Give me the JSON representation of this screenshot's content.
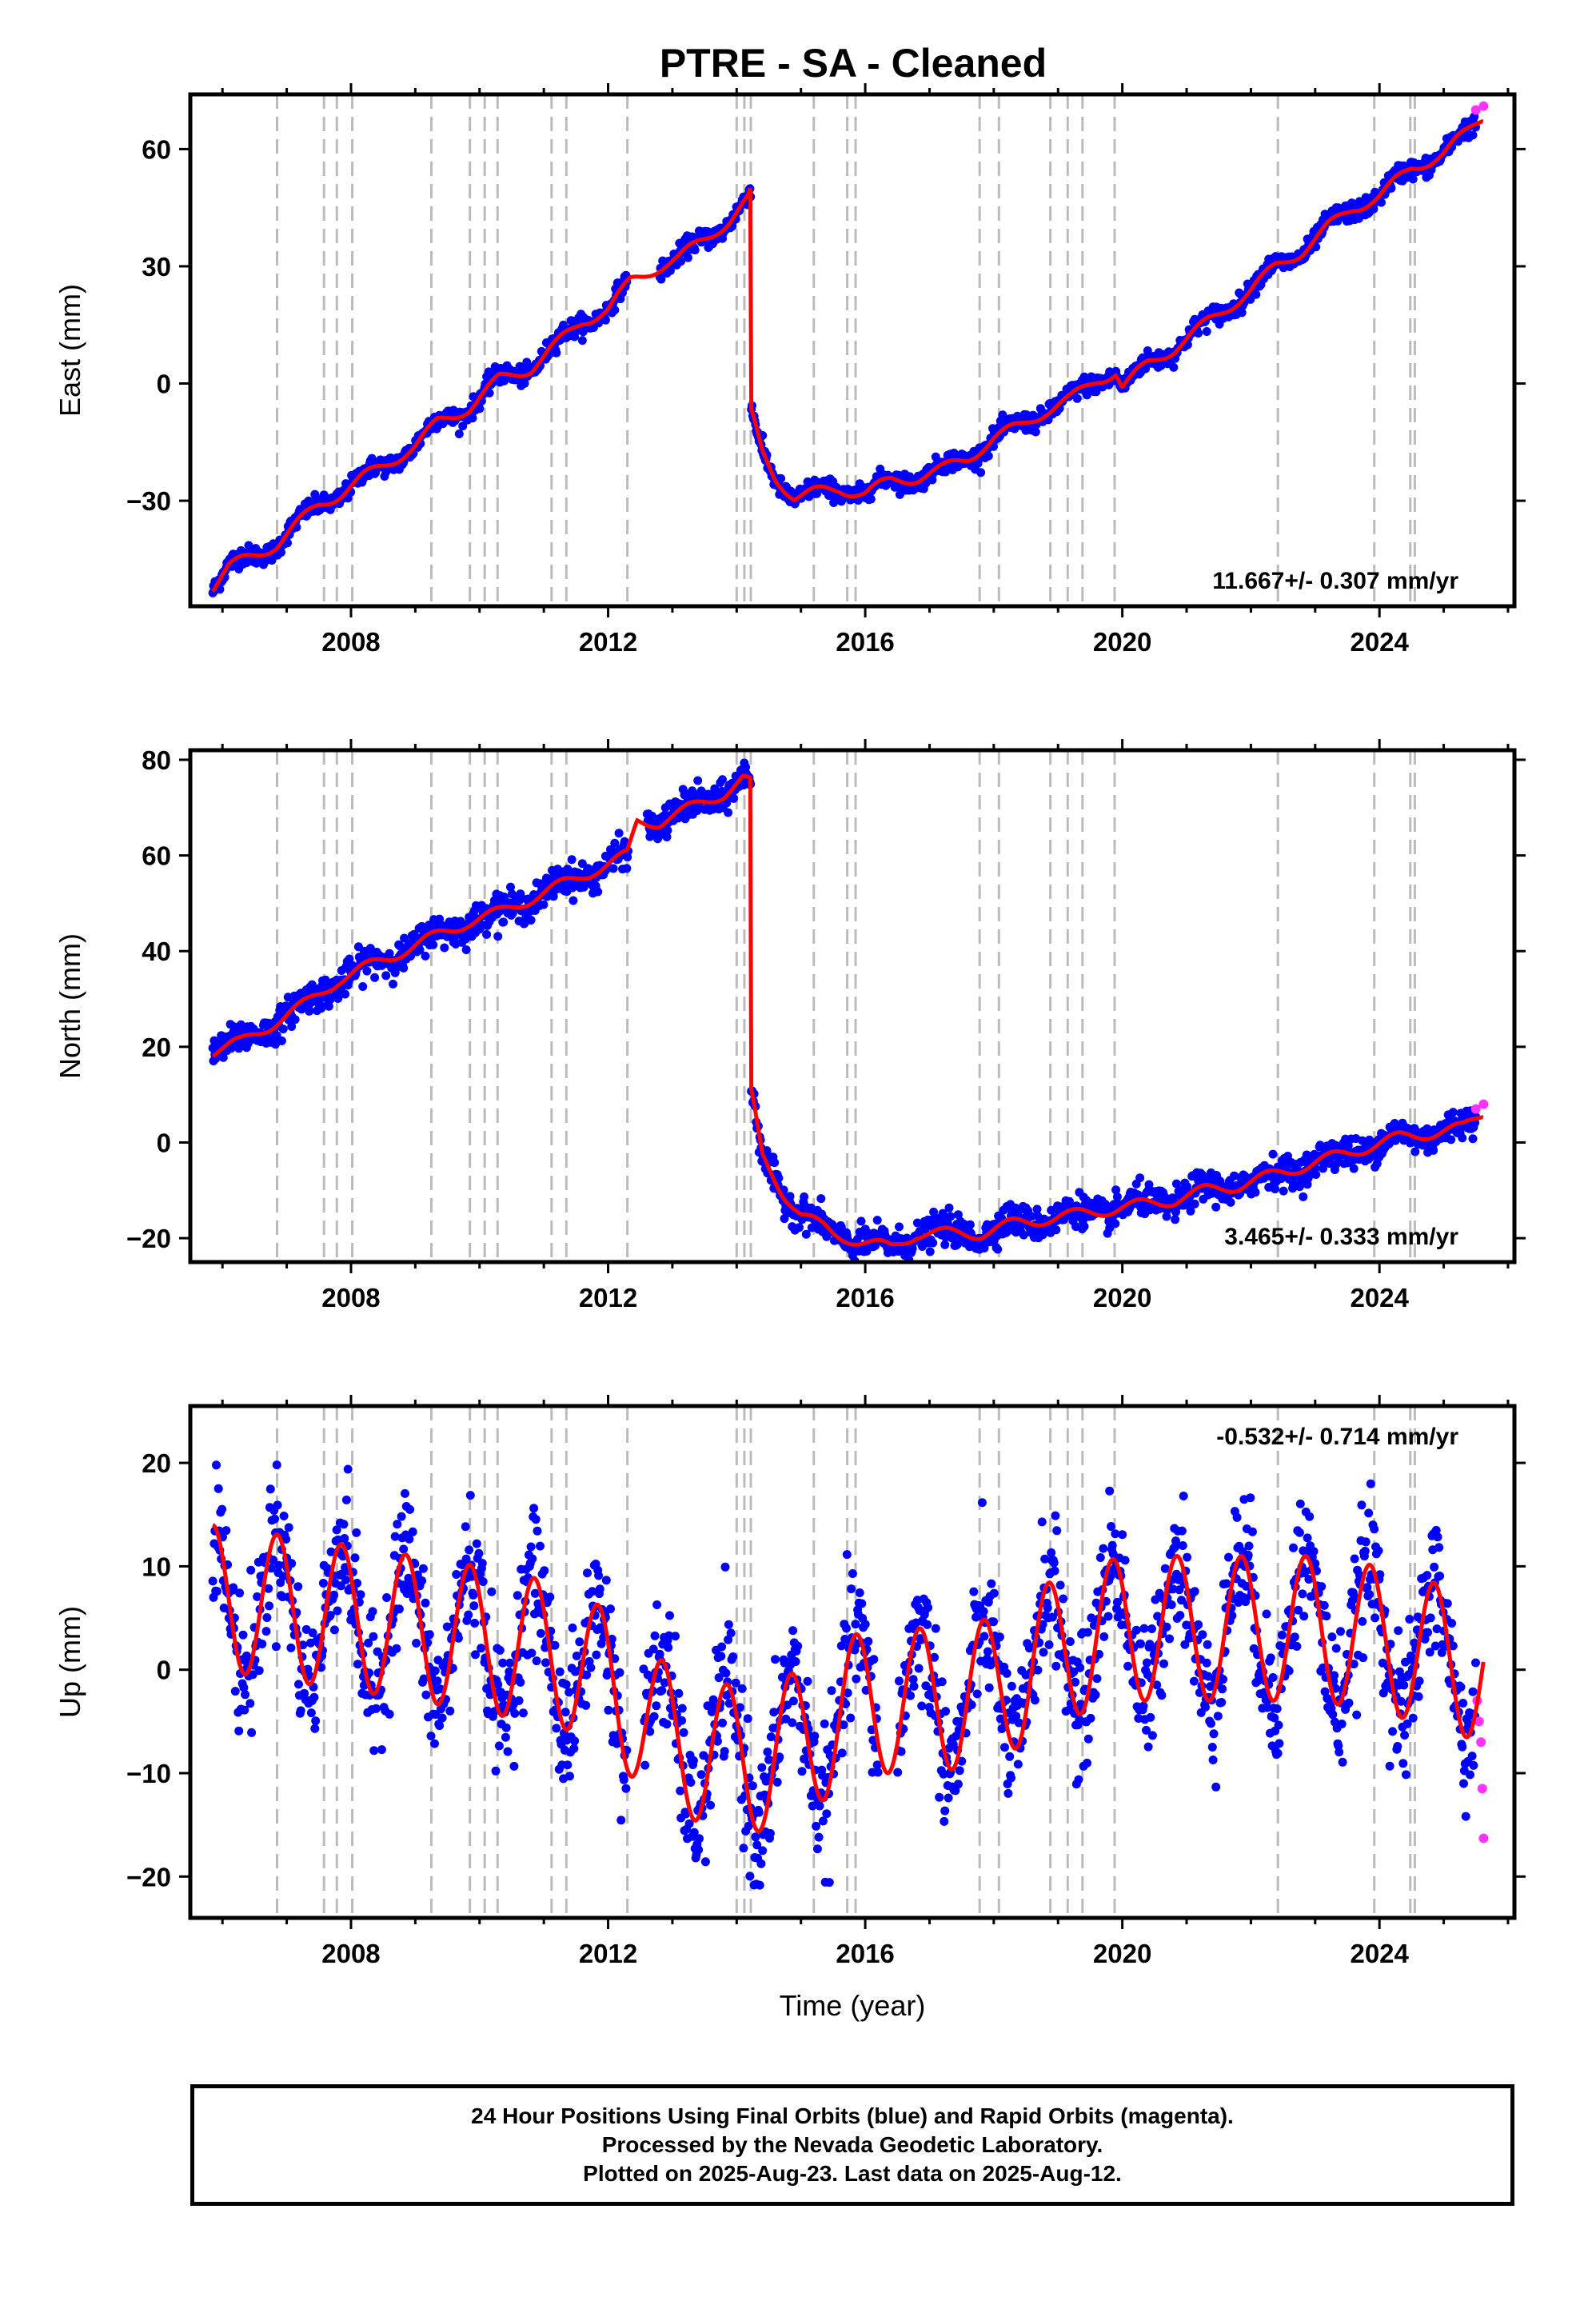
{
  "colors": {
    "final_orbits": "#0000ff",
    "rapid_orbits": "#ff33ff",
    "model": "#ff0000",
    "event_lines": "#bbbbbb",
    "frame": "#000000"
  },
  "caption": {
    "line1": "24 Hour Positions Using Final Orbits (blue) and Rapid Orbits (magenta).",
    "line2": "Processed by the Nevada Geodetic Laboratory.",
    "line3": "Plotted on 2025-Aug-23. Last data on 2025-Aug-12."
  },
  "chart_data": [
    {
      "type": "scatter",
      "title": "PTRE  - SA - Cleaned",
      "xlabel": "",
      "ylabel": "East (mm)",
      "xlim": [
        2005.5,
        2026.1
      ],
      "ylim": [
        -57,
        74
      ],
      "xticks": [
        2008,
        2012,
        2016,
        2020,
        2024
      ],
      "yticks": [
        -30,
        0,
        30,
        60
      ],
      "rate": "11.667+/- 0.307 mm/yr",
      "rate_position": "bottom-right",
      "event_lines": [
        2006.85,
        2007.58,
        2007.78,
        2008.02,
        2009.25,
        2009.85,
        2010.08,
        2010.28,
        2011.12,
        2011.35,
        2012.3,
        2014.0,
        2014.12,
        2014.22,
        2015.2,
        2015.72,
        2015.85,
        2017.78,
        2018.08,
        2018.88,
        2019.15,
        2019.38,
        2019.88,
        2022.42,
        2023.92,
        2024.48,
        2024.55
      ],
      "anchors": [
        [
          2005.85,
          -52
        ],
        [
          2006.1,
          -47
        ],
        [
          2006.5,
          -44
        ],
        [
          2006.85,
          -41
        ],
        [
          2007.1,
          -37
        ],
        [
          2007.5,
          -31
        ],
        [
          2007.85,
          -28
        ],
        [
          2008.2,
          -24
        ],
        [
          2008.6,
          -20
        ],
        [
          2009.0,
          -16
        ],
        [
          2009.35,
          -10
        ],
        [
          2009.85,
          -6
        ],
        [
          2010.3,
          1
        ],
        [
          2010.8,
          4
        ],
        [
          2011.2,
          10
        ],
        [
          2011.6,
          16
        ],
        [
          2012.0,
          19
        ],
        [
          2012.35,
          26
        ],
        [
          2012.8,
          30
        ],
        [
          2013.1,
          32
        ],
        [
          2013.5,
          37
        ],
        [
          2013.9,
          42
        ],
        [
          2014.18,
          47
        ],
        [
          2014.22,
          49
        ]
      ],
      "anchors_post": [
        [
          2014.23,
          -8
        ],
        [
          2014.4,
          -18
        ],
        [
          2014.6,
          -24
        ],
        [
          2014.9,
          -29
        ],
        [
          2015.2,
          -28
        ],
        [
          2015.6,
          -27
        ],
        [
          2016.0,
          -28
        ],
        [
          2016.4,
          -25
        ],
        [
          2016.8,
          -24
        ],
        [
          2017.2,
          -22
        ],
        [
          2017.6,
          -19
        ],
        [
          2018.0,
          -14
        ],
        [
          2018.4,
          -11
        ],
        [
          2018.8,
          -7
        ],
        [
          2019.2,
          -4
        ],
        [
          2019.6,
          1
        ],
        [
          2019.9,
          3
        ],
        [
          2020.0,
          -1
        ],
        [
          2020.4,
          5
        ],
        [
          2020.8,
          9
        ],
        [
          2021.2,
          14
        ],
        [
          2021.6,
          19
        ],
        [
          2022.0,
          24
        ],
        [
          2022.4,
          30
        ],
        [
          2022.8,
          34
        ],
        [
          2023.2,
          40
        ],
        [
          2023.6,
          45
        ],
        [
          2024.0,
          48
        ],
        [
          2024.5,
          55
        ],
        [
          2025.0,
          59
        ],
        [
          2025.35,
          64
        ],
        [
          2025.6,
          68
        ]
      ],
      "noise": 1.2,
      "seasonal_amp": 1.5,
      "rapid_orbits_tail": [
        [
          2025.5,
          70
        ],
        [
          2025.62,
          71
        ]
      ]
    },
    {
      "type": "scatter",
      "title": "",
      "xlabel": "",
      "ylabel": "North (mm)",
      "xlim": [
        2005.5,
        2026.1
      ],
      "ylim": [
        -25,
        82
      ],
      "xticks": [
        2008,
        2012,
        2016,
        2020,
        2024
      ],
      "yticks": [
        -20,
        0,
        20,
        40,
        60,
        80
      ],
      "rate": "3.465+/- 0.333 mm/yr",
      "rate_position": "bottom-right",
      "event_lines": [
        2006.85,
        2007.58,
        2007.78,
        2008.02,
        2009.25,
        2009.85,
        2010.08,
        2010.28,
        2011.12,
        2011.35,
        2012.3,
        2014.0,
        2014.12,
        2014.22,
        2015.2,
        2015.72,
        2015.85,
        2017.78,
        2018.08,
        2018.88,
        2019.15,
        2019.38,
        2019.88,
        2022.42,
        2023.92,
        2024.48,
        2024.55
      ],
      "anchors": [
        [
          2005.85,
          19
        ],
        [
          2006.3,
          21
        ],
        [
          2006.8,
          25
        ],
        [
          2007.3,
          29
        ],
        [
          2007.8,
          34
        ],
        [
          2008.3,
          37
        ],
        [
          2008.8,
          40
        ],
        [
          2009.3,
          43
        ],
        [
          2009.8,
          46
        ],
        [
          2010.3,
          48
        ],
        [
          2010.8,
          51
        ],
        [
          2011.3,
          54
        ],
        [
          2011.8,
          57
        ],
        [
          2012.3,
          60
        ],
        [
          2012.45,
          67
        ],
        [
          2012.8,
          67
        ],
        [
          2013.3,
          70
        ],
        [
          2013.8,
          73
        ],
        [
          2014.1,
          76
        ],
        [
          2014.22,
          75
        ]
      ],
      "anchors_post": [
        [
          2014.23,
          10
        ],
        [
          2014.4,
          -3
        ],
        [
          2014.7,
          -10
        ],
        [
          2015.0,
          -15
        ],
        [
          2015.5,
          -19
        ],
        [
          2016.0,
          -21
        ],
        [
          2016.4,
          -22
        ],
        [
          2016.8,
          -19
        ],
        [
          2017.3,
          -19
        ],
        [
          2017.8,
          -19
        ],
        [
          2018.3,
          -17
        ],
        [
          2018.8,
          -16
        ],
        [
          2019.3,
          -15
        ],
        [
          2019.8,
          -14
        ],
        [
          2020.3,
          -13
        ],
        [
          2020.8,
          -12
        ],
        [
          2021.3,
          -10
        ],
        [
          2021.8,
          -9
        ],
        [
          2022.3,
          -7
        ],
        [
          2022.8,
          -5
        ],
        [
          2023.3,
          -3
        ],
        [
          2023.8,
          -1
        ],
        [
          2024.3,
          1
        ],
        [
          2024.8,
          2
        ],
        [
          2025.3,
          3
        ],
        [
          2025.6,
          6
        ]
      ],
      "noise": 1.6,
      "seasonal_amp": 1.2,
      "rapid_orbits_tail": [
        [
          2025.5,
          7
        ],
        [
          2025.62,
          8
        ]
      ]
    },
    {
      "type": "scatter",
      "title": "",
      "xlabel": "Time (year)",
      "ylabel": "Up (mm)",
      "xlim": [
        2005.5,
        2026.1
      ],
      "ylim": [
        -24,
        25.5
      ],
      "xticks": [
        2008,
        2012,
        2016,
        2020,
        2024
      ],
      "yticks": [
        -20,
        -10,
        0,
        10,
        20
      ],
      "rate": "-0.532+/- 0.714 mm/yr",
      "rate_position": "top-right",
      "event_lines": [
        2006.85,
        2007.58,
        2007.78,
        2008.02,
        2009.25,
        2009.85,
        2010.08,
        2010.28,
        2011.12,
        2011.35,
        2012.3,
        2014.0,
        2014.12,
        2014.22,
        2015.2,
        2015.72,
        2015.85,
        2017.78,
        2018.08,
        2018.88,
        2019.15,
        2019.38,
        2019.88,
        2022.42,
        2023.92,
        2024.48,
        2024.55
      ],
      "model_baseline": [
        [
          2005.85,
          7
        ],
        [
          2008.0,
          5
        ],
        [
          2010.0,
          3
        ],
        [
          2011.5,
          1
        ],
        [
          2012.3,
          -3
        ],
        [
          2013.0,
          -7
        ],
        [
          2014.2,
          -9
        ],
        [
          2015.0,
          -7
        ],
        [
          2016.0,
          -3
        ],
        [
          2017.0,
          -3
        ],
        [
          2018.0,
          -2
        ],
        [
          2019.0,
          2
        ],
        [
          2020.0,
          4
        ],
        [
          2021.0,
          4
        ],
        [
          2022.0,
          4
        ],
        [
          2023.0,
          4
        ],
        [
          2024.0,
          3
        ],
        [
          2025.6,
          0
        ]
      ],
      "seasonal_amp": 7,
      "seasonal_peak_phase": 0.85,
      "noise": 3.2,
      "rapid_orbits_tail": [
        [
          2025.52,
          -3
        ],
        [
          2025.55,
          -5
        ],
        [
          2025.58,
          -7
        ],
        [
          2025.6,
          -11.5
        ],
        [
          2025.62,
          -16.3
        ]
      ]
    }
  ]
}
